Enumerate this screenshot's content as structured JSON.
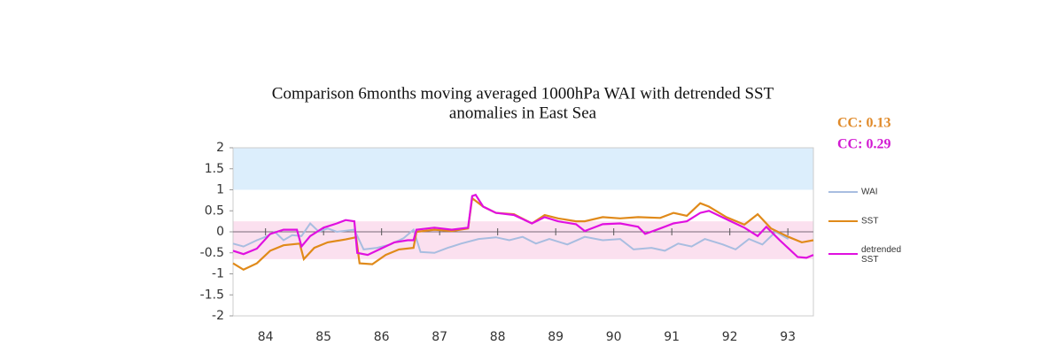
{
  "chart_data": {
    "type": "line",
    "title": [
      "Comparison 6months moving averaged 1000hPa WAI with detrended SST",
      "anomalies in East Sea"
    ],
    "annotations": [
      {
        "text": "CC: 0.13",
        "color": "#e08a2a"
      },
      {
        "text": "CC: 0.29",
        "color": "#d21ad2"
      }
    ],
    "xlim": [
      83.44,
      93.44
    ],
    "xticks": [
      84,
      85,
      86,
      87,
      88,
      89,
      90,
      91,
      92,
      93
    ],
    "ylim": [
      -2,
      2
    ],
    "yticks": [
      2,
      1.5,
      1,
      0.5,
      0,
      -0.5,
      -1,
      -1.5,
      -2
    ],
    "bands": [
      {
        "from": 1,
        "to": 2,
        "color": "#dceefc"
      },
      {
        "from": -0.65,
        "to": 0.25,
        "color": "#fbe0ef"
      }
    ],
    "series": [
      {
        "name": "WAI",
        "color": "#a8bde0",
        "x": [
          83.44,
          83.62,
          83.85,
          84.0,
          84.16,
          84.31,
          84.46,
          84.62,
          84.77,
          84.92,
          85.07,
          85.23,
          85.53,
          85.69,
          85.92,
          86.15,
          86.38,
          86.55,
          86.67,
          86.91,
          87.14,
          87.37,
          87.67,
          87.97,
          88.2,
          88.43,
          88.66,
          88.89,
          89.2,
          89.5,
          89.81,
          90.11,
          90.34,
          90.65,
          90.88,
          91.11,
          91.34,
          91.57,
          91.88,
          92.1,
          92.33,
          92.56,
          92.79,
          93.01
        ],
        "values": [
          -0.28,
          -0.35,
          -0.2,
          -0.12,
          0,
          -0.2,
          -0.08,
          -0.1,
          0.2,
          0,
          0.08,
          0,
          0.05,
          -0.42,
          -0.38,
          -0.3,
          -0.15,
          0.05,
          -0.48,
          -0.5,
          -0.38,
          -0.28,
          -0.17,
          -0.13,
          -0.2,
          -0.12,
          -0.28,
          -0.17,
          -0.3,
          -0.12,
          -0.2,
          -0.17,
          -0.42,
          -0.38,
          -0.45,
          -0.28,
          -0.35,
          -0.17,
          -0.3,
          -0.42,
          -0.17,
          -0.3,
          0,
          -0.17
        ]
      },
      {
        "name": "SST",
        "color": "#e08a1a",
        "x": [
          83.44,
          83.62,
          83.85,
          84.08,
          84.31,
          84.59,
          84.66,
          84.84,
          85.07,
          85.38,
          85.56,
          85.62,
          85.84,
          86.07,
          86.3,
          86.55,
          86.6,
          86.91,
          87.21,
          87.49,
          87.56,
          87.75,
          87.97,
          88.28,
          88.59,
          88.81,
          89.04,
          89.35,
          89.5,
          89.81,
          90.11,
          90.42,
          90.8,
          91.03,
          91.26,
          91.49,
          91.64,
          91.94,
          92.25,
          92.48,
          92.71,
          93.01,
          93.24,
          93.44
        ],
        "values": [
          -0.75,
          -0.9,
          -0.75,
          -0.45,
          -0.32,
          -0.28,
          -0.65,
          -0.38,
          -0.25,
          -0.18,
          -0.13,
          -0.75,
          -0.77,
          -0.55,
          -0.42,
          -0.38,
          0,
          0.05,
          0.02,
          0.08,
          0.8,
          0.6,
          0.45,
          0.42,
          0.2,
          0.4,
          0.32,
          0.25,
          0.25,
          0.35,
          0.32,
          0.35,
          0.33,
          0.45,
          0.38,
          0.68,
          0.6,
          0.35,
          0.17,
          0.42,
          0.08,
          -0.12,
          -0.25,
          -0.2
        ]
      },
      {
        "name": "detrended SST",
        "color": "#e010e0",
        "x": [
          83.44,
          83.62,
          83.85,
          84.08,
          84.31,
          84.54,
          84.62,
          84.77,
          85.0,
          85.23,
          85.38,
          85.53,
          85.58,
          85.76,
          85.99,
          86.22,
          86.45,
          86.55,
          86.6,
          86.91,
          87.21,
          87.49,
          87.56,
          87.62,
          87.75,
          87.97,
          88.28,
          88.59,
          88.81,
          89.04,
          89.35,
          89.5,
          89.81,
          90.11,
          90.42,
          90.54,
          90.8,
          91.03,
          91.26,
          91.49,
          91.64,
          91.94,
          92.25,
          92.48,
          92.63,
          92.86,
          93.17,
          93.32,
          93.44
        ],
        "values": [
          -0.45,
          -0.53,
          -0.4,
          -0.05,
          0.05,
          0.05,
          -0.35,
          -0.1,
          0.1,
          0.2,
          0.28,
          0.25,
          -0.5,
          -0.55,
          -0.4,
          -0.25,
          -0.2,
          -0.2,
          0.05,
          0.1,
          0.05,
          0.1,
          0.85,
          0.88,
          0.6,
          0.45,
          0.4,
          0.2,
          0.35,
          0.25,
          0.18,
          0.02,
          0.18,
          0.2,
          0.12,
          -0.05,
          0.08,
          0.2,
          0.25,
          0.45,
          0.5,
          0.3,
          0.1,
          -0.1,
          0.12,
          -0.2,
          -0.6,
          -0.62,
          -0.55
        ]
      }
    ]
  }
}
